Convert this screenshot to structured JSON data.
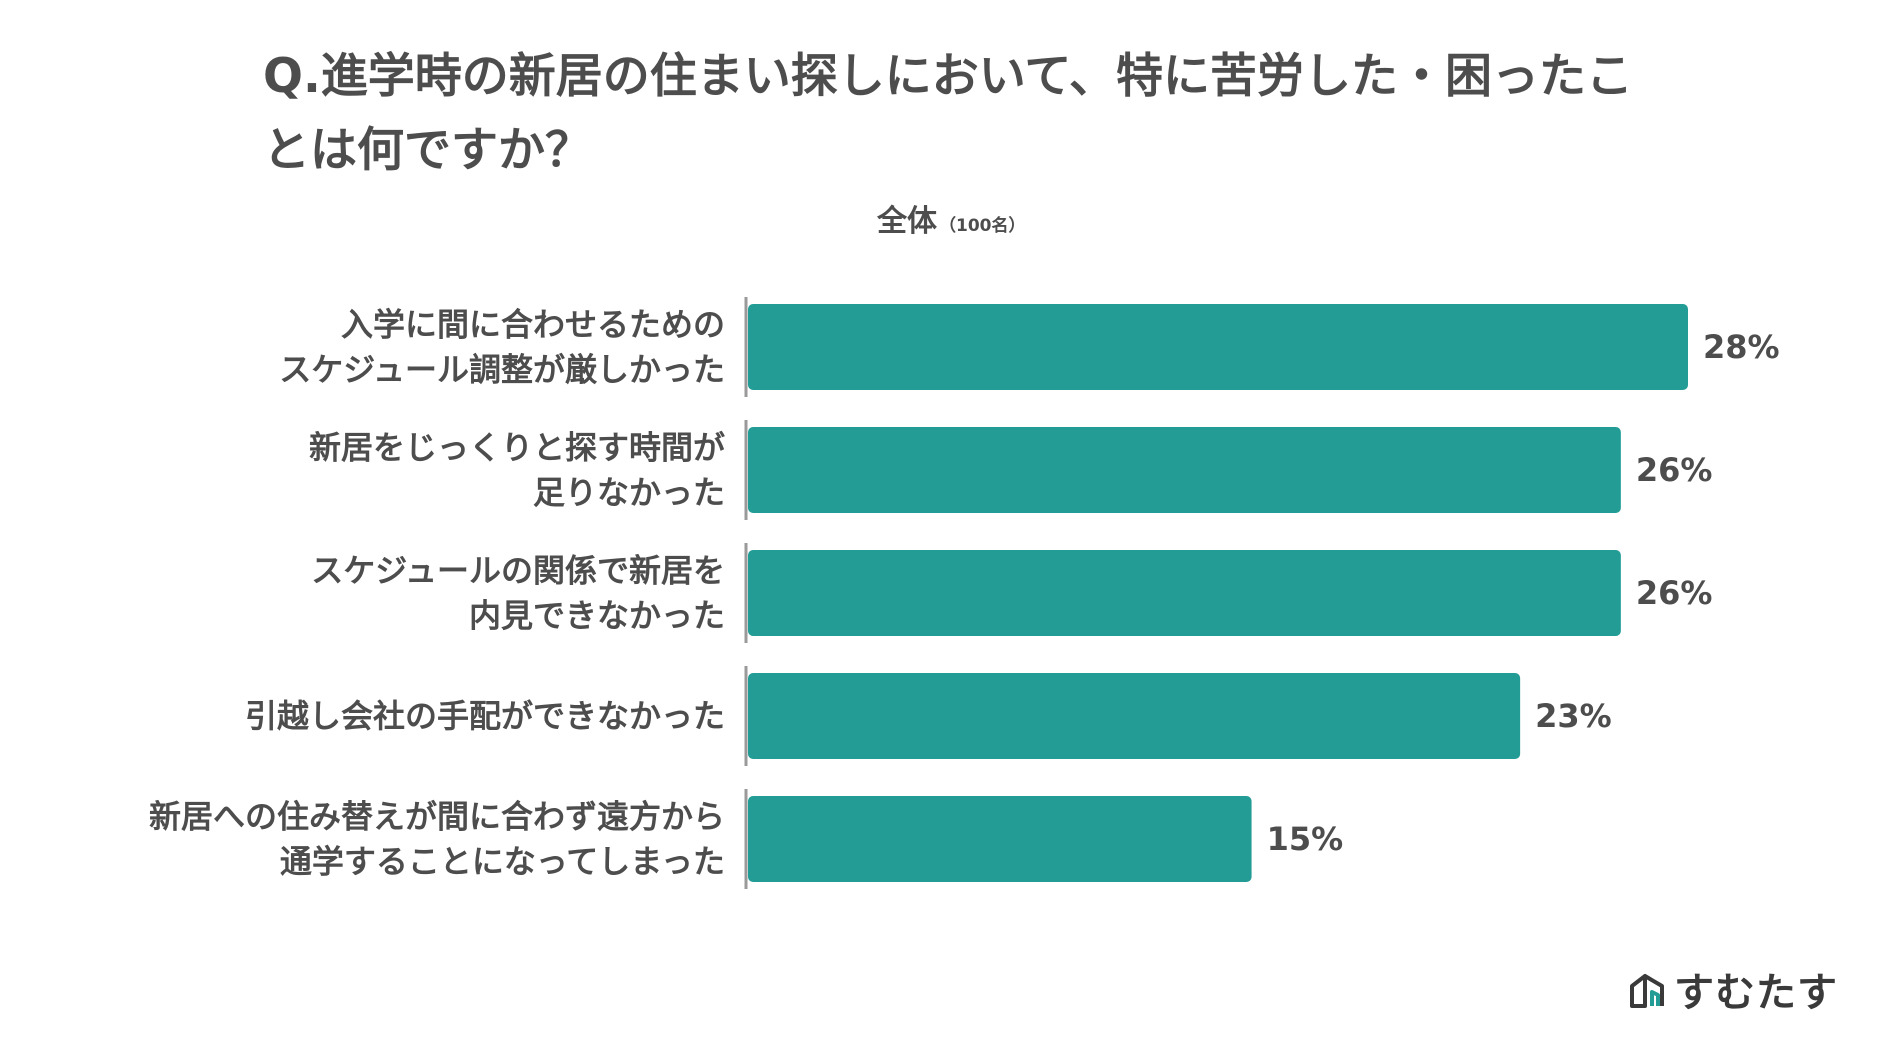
{
  "title": "Q.進学時の新居の住まい探しにおいて、特に苦労した・困ったことは何ですか？",
  "subtitle": {
    "main": "全体",
    "note": "（100名）"
  },
  "logo": {
    "text": "すむたす",
    "icon": "house-logo-icon"
  },
  "colors": {
    "bar": "#249c96",
    "text": "#4d4d4d",
    "axis": "#9a9a9a"
  },
  "chart_data": {
    "type": "bar",
    "orientation": "horizontal",
    "categories": [
      [
        "入学に間に合わせるための",
        "スケジュール調整が厳しかった"
      ],
      [
        "新居をじっくりと探す時間が",
        "足りなかった"
      ],
      [
        "スケジュールの関係で新居を",
        "内見できなかった"
      ],
      [
        "引越し会社の手配ができなかった"
      ],
      [
        "新居への住み替えが間に合わず遠方から",
        "通学することになってしまった"
      ]
    ],
    "values": [
      28,
      26,
      26,
      23,
      15
    ],
    "value_labels": [
      "28%",
      "26%",
      "26%",
      "23%",
      "15%"
    ],
    "unit": "%",
    "xlim": [
      0,
      28
    ],
    "grid": false,
    "legend": "none"
  }
}
